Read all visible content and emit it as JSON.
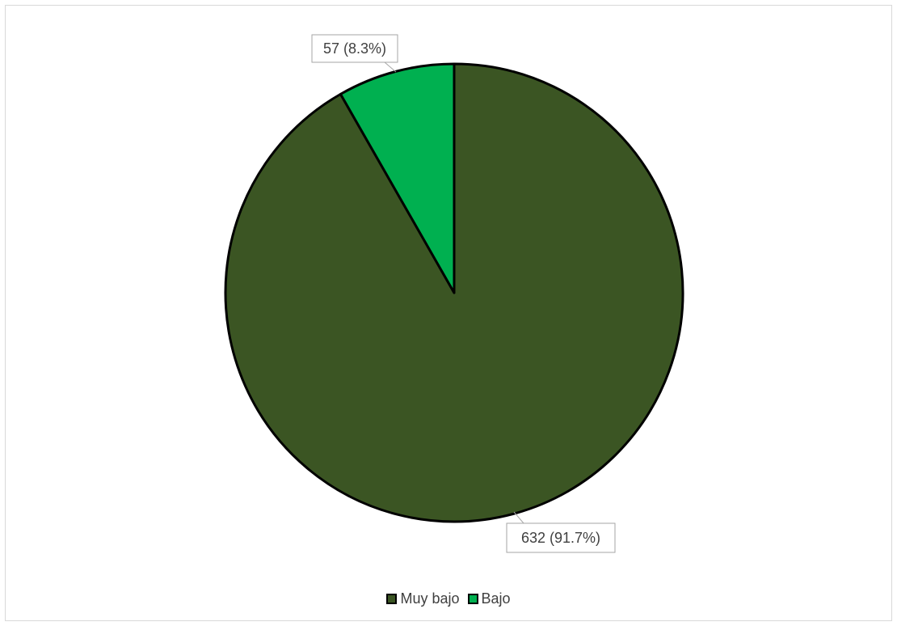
{
  "chart_data": {
    "type": "pie",
    "categories": [
      "Muy bajo",
      "Bajo"
    ],
    "values": [
      632,
      57
    ],
    "percentages": [
      91.7,
      8.3
    ],
    "data_labels": [
      "632 (91.7%)",
      "57 (8.3%)"
    ],
    "colors": [
      "#3B5523",
      "#00B050"
    ],
    "legend_position": "bottom",
    "title": ""
  },
  "legend": {
    "items": [
      {
        "label": "Muy bajo",
        "color": "#3B5523"
      },
      {
        "label": "Bajo",
        "color": "#00B050"
      }
    ]
  }
}
